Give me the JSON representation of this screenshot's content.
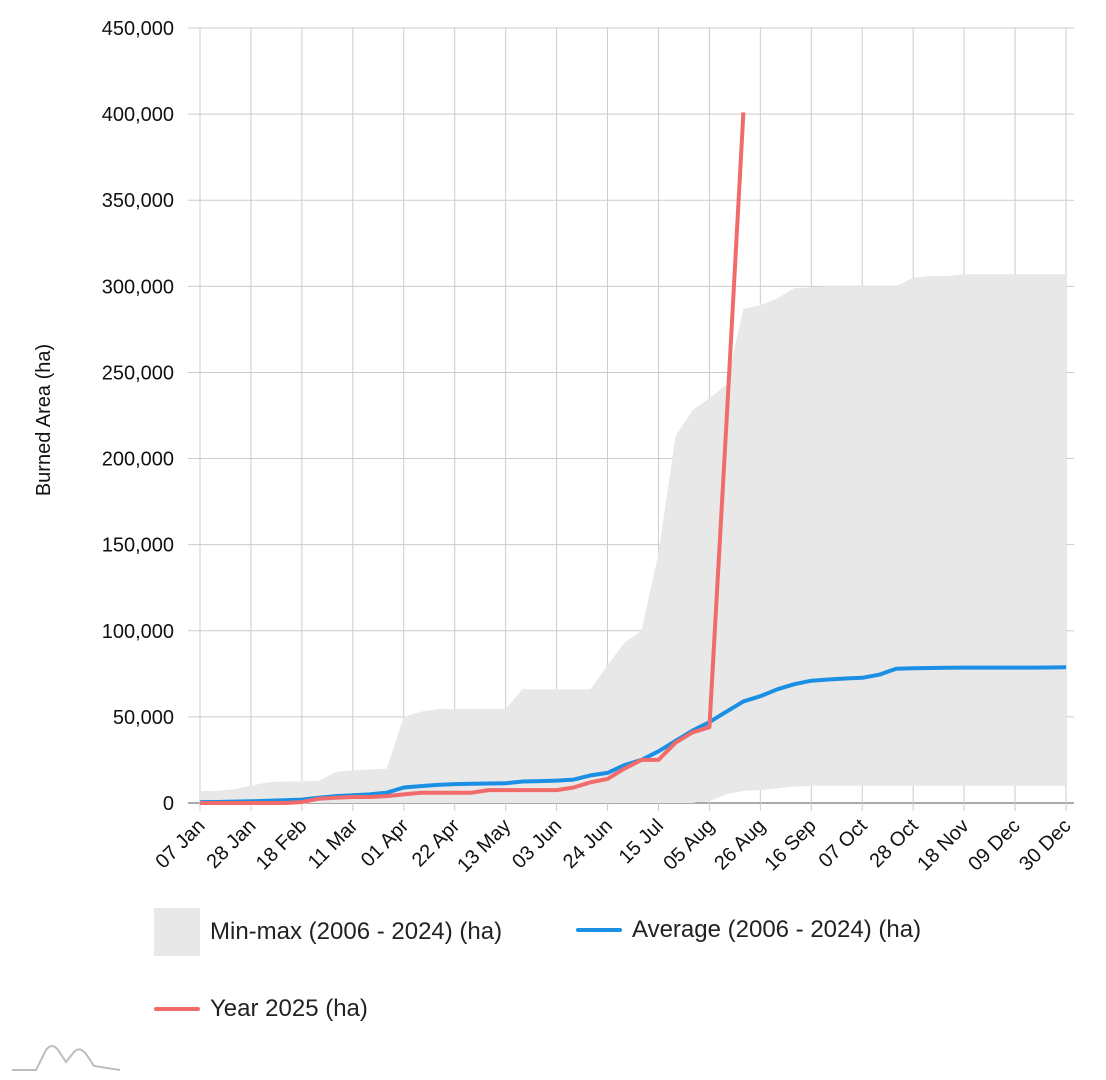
{
  "chart_data": {
    "type": "line",
    "ylabel": "Burned Area (ha)",
    "xlabel": "",
    "ylim": [
      0,
      450000
    ],
    "y_ticks": [
      0,
      50000,
      100000,
      150000,
      200000,
      250000,
      300000,
      350000,
      400000,
      450000
    ],
    "y_tick_labels": [
      "0",
      "50,000",
      "100,000",
      "150,000",
      "200,000",
      "250,000",
      "300,000",
      "350,000",
      "400,000",
      "450,000"
    ],
    "x_tick_labels": [
      "07 Jan",
      "28 Jan",
      "18 Feb",
      "11 Mar",
      "01 Apr",
      "22 Apr",
      "13 May",
      "03 Jun",
      "24 Jun",
      "15 Jul",
      "05 Aug",
      "26 Aug",
      "16 Sep",
      "07 Oct",
      "28 Oct",
      "18 Nov",
      "09 Dec",
      "30 Dec"
    ],
    "grid": true,
    "legend_position": "bottom",
    "colors": {
      "minmax": "#e8e8e8",
      "average": "#1a8fe3",
      "year": "#f26b6b",
      "grid": "#cccccc"
    },
    "minmax": {
      "name": "Min-max (2006 - 2024) (ha)",
      "x": [
        "07 Jan",
        "14 Jan",
        "21 Jan",
        "28 Jan",
        "04 Feb",
        "11 Feb",
        "18 Feb",
        "25 Feb",
        "04 Mar",
        "11 Mar",
        "18 Mar",
        "25 Mar",
        "01 Apr",
        "08 Apr",
        "15 Apr",
        "22 Apr",
        "29 Apr",
        "06 May",
        "13 May",
        "20 May",
        "27 May",
        "03 Jun",
        "10 Jun",
        "17 Jun",
        "24 Jun",
        "01 Jul",
        "08 Jul",
        "15 Jul",
        "22 Jul",
        "29 Jul",
        "05 Aug",
        "12 Aug",
        "19 Aug",
        "26 Aug",
        "02 Sep",
        "09 Sep",
        "16 Sep",
        "23 Sep",
        "30 Sep",
        "07 Oct",
        "14 Oct",
        "21 Oct",
        "28 Oct",
        "04 Nov",
        "11 Nov",
        "18 Nov",
        "25 Nov",
        "02 Dec",
        "09 Dec",
        "16 Dec",
        "23 Dec",
        "30 Dec"
      ],
      "max": [
        7000,
        7000,
        8000,
        10000,
        12000,
        12500,
        12500,
        13000,
        18000,
        19000,
        19500,
        20000,
        50000,
        53000,
        54500,
        54500,
        54500,
        54500,
        54500,
        66000,
        66000,
        66000,
        66000,
        66000,
        80000,
        93000,
        100000,
        145000,
        213000,
        228000,
        235000,
        243000,
        287000,
        289000,
        293000,
        299000,
        299500,
        300000,
        300000,
        300000,
        300000,
        300000,
        305000,
        306000,
        306000,
        307000,
        307000,
        307000,
        307000,
        307000,
        307000,
        307000
      ],
      "min": [
        0,
        0,
        0,
        0,
        0,
        0,
        0,
        0,
        0,
        0,
        0,
        0,
        0,
        0,
        0,
        0,
        0,
        0,
        0,
        0,
        0,
        0,
        0,
        0,
        0,
        0,
        0,
        0,
        0,
        0,
        1000,
        5000,
        7000,
        7500,
        8500,
        9500,
        10000,
        10000,
        10000,
        10000,
        10000,
        10000,
        10000,
        10000,
        10000,
        10000,
        10000,
        10000,
        10000,
        10000,
        10000,
        10000
      ]
    },
    "series": [
      {
        "name": "Average (2006 - 2024) (ha)",
        "x": [
          "07 Jan",
          "14 Jan",
          "21 Jan",
          "28 Jan",
          "04 Feb",
          "11 Feb",
          "18 Feb",
          "25 Feb",
          "04 Mar",
          "11 Mar",
          "18 Mar",
          "25 Mar",
          "01 Apr",
          "08 Apr",
          "15 Apr",
          "22 Apr",
          "29 Apr",
          "06 May",
          "13 May",
          "20 May",
          "27 May",
          "03 Jun",
          "10 Jun",
          "17 Jun",
          "24 Jun",
          "01 Jul",
          "08 Jul",
          "15 Jul",
          "22 Jul",
          "29 Jul",
          "05 Aug",
          "12 Aug",
          "19 Aug",
          "26 Aug",
          "02 Sep",
          "09 Sep",
          "16 Sep",
          "23 Sep",
          "30 Sep",
          "07 Oct",
          "14 Oct",
          "21 Oct",
          "28 Oct",
          "04 Nov",
          "11 Nov",
          "18 Nov",
          "25 Nov",
          "02 Dec",
          "09 Dec",
          "16 Dec",
          "23 Dec",
          "30 Dec"
        ],
        "values": [
          500,
          600,
          800,
          1000,
          1300,
          1600,
          2000,
          3000,
          4000,
          4500,
          5000,
          6000,
          9000,
          9800,
          10500,
          11000,
          11200,
          11300,
          11500,
          12500,
          12700,
          13000,
          13600,
          16000,
          17500,
          22000,
          25000,
          30000,
          36000,
          42000,
          47000,
          53000,
          59000,
          62000,
          66000,
          69000,
          71000,
          71700,
          72300,
          72700,
          74500,
          78000,
          78200,
          78400,
          78500,
          78600,
          78600,
          78600,
          78600,
          78600,
          78700,
          78800
        ]
      },
      {
        "name": "Year 2025 (ha)",
        "x": [
          "07 Jan",
          "14 Jan",
          "21 Jan",
          "28 Jan",
          "04 Feb",
          "11 Feb",
          "18 Feb",
          "25 Feb",
          "04 Mar",
          "11 Mar",
          "18 Mar",
          "25 Mar",
          "01 Apr",
          "08 Apr",
          "15 Apr",
          "22 Apr",
          "29 Apr",
          "06 May",
          "13 May",
          "20 May",
          "27 May",
          "03 Jun",
          "10 Jun",
          "17 Jun",
          "24 Jun",
          "01 Jul",
          "08 Jul",
          "15 Jul",
          "22 Jul",
          "29 Jul",
          "05 Aug",
          "12 Aug",
          "19 Aug"
        ],
        "values": [
          0,
          0,
          0,
          0,
          0,
          0,
          500,
          2500,
          3000,
          3500,
          3500,
          4000,
          5000,
          6000,
          6000,
          6000,
          6000,
          7500,
          7500,
          7500,
          7500,
          7500,
          9000,
          12000,
          14000,
          20000,
          25000,
          25000,
          35000,
          41000,
          44000,
          220000,
          401000
        ]
      }
    ]
  }
}
